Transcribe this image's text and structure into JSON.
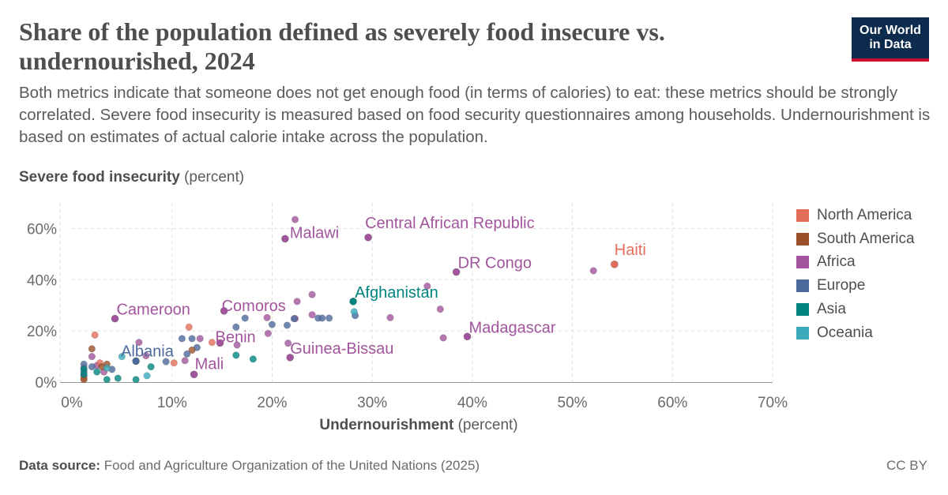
{
  "header": {
    "title": "Share of the population defined as severely food insecure vs. undernourished, 2024",
    "subtitle": "Both metrics indicate that someone does not get enough food (in terms of calories) to eat: these metrics should be strongly correlated. Severe food insecurity is measured based on food security questionnaires among households. Undernourishment is based on estimates of actual calorie intake across the population.",
    "logo_line1": "Our World",
    "logo_line2": "in Data"
  },
  "axes": {
    "y_label_bold": "Severe food insecurity",
    "y_label_unit": "(percent)",
    "x_label_bold": "Undernourishment",
    "x_label_unit": "(percent)"
  },
  "footer": {
    "source_label": "Data source:",
    "source_text": "Food and Agriculture Organization of the United Nations (2025)",
    "license": "CC BY"
  },
  "colors": {
    "North America": "#e56e5a",
    "South America": "#9a5129",
    "Africa": "#a2559c",
    "Europe": "#4c6a9c",
    "Asia": "#00847e",
    "Oceania": "#38aaba"
  },
  "chart_data": {
    "type": "scatter",
    "xlabel": "Undernourishment (percent)",
    "ylabel": "Severe food insecurity (percent)",
    "xlim": [
      0,
      70
    ],
    "ylim": [
      0,
      70
    ],
    "x_ticks": [
      0,
      10,
      20,
      30,
      40,
      50,
      60,
      70
    ],
    "y_ticks": [
      0,
      20,
      40,
      60
    ],
    "x_tick_labels": [
      "0%",
      "10%",
      "20%",
      "30%",
      "40%",
      "50%",
      "60%",
      "70%"
    ],
    "y_tick_labels": [
      "0%",
      "20%",
      "40%",
      "60%"
    ],
    "grid": true,
    "legend_position": "right",
    "legend": [
      "North America",
      "South America",
      "Africa",
      "Europe",
      "Asia",
      "Oceania"
    ],
    "labeled_points": [
      {
        "name": "Haiti",
        "region": "North America",
        "x": 54.2,
        "y": 46.0
      },
      {
        "name": "Malawi",
        "region": "Africa",
        "x": 21.3,
        "y": 56.0
      },
      {
        "name": "Central African Republic",
        "region": "Africa",
        "x": 29.6,
        "y": 56.5
      },
      {
        "name": "DR Congo",
        "region": "Africa",
        "x": 38.4,
        "y": 43.0
      },
      {
        "name": "Afghanistan",
        "region": "Asia",
        "x": 28.1,
        "y": 31.5
      },
      {
        "name": "Cameroon",
        "region": "Africa",
        "x": 4.3,
        "y": 24.8
      },
      {
        "name": "Comoros",
        "region": "Africa",
        "x": 15.2,
        "y": 27.8
      },
      {
        "name": "Madagascar",
        "region": "Africa",
        "x": 39.5,
        "y": 17.8
      },
      {
        "name": "Benin",
        "region": "Africa",
        "x": 14.8,
        "y": 15.3
      },
      {
        "name": "Guinea-Bissau",
        "region": "Africa",
        "x": 21.8,
        "y": 9.6
      },
      {
        "name": "Albania",
        "region": "Europe",
        "x": 6.4,
        "y": 8.2
      },
      {
        "name": "Mali",
        "region": "Africa",
        "x": 12.2,
        "y": 3.0
      }
    ],
    "points": [
      {
        "region": "Africa",
        "x": 22.3,
        "y": 63.5
      },
      {
        "region": "Africa",
        "x": 52.1,
        "y": 43.5
      },
      {
        "region": "Africa",
        "x": 35.5,
        "y": 37.5
      },
      {
        "region": "Africa",
        "x": 24.0,
        "y": 34.2
      },
      {
        "region": "Africa",
        "x": 22.5,
        "y": 31.5
      },
      {
        "region": "Africa",
        "x": 36.8,
        "y": 28.5
      },
      {
        "region": "Africa",
        "x": 31.8,
        "y": 25.2
      },
      {
        "region": "Africa",
        "x": 24.0,
        "y": 26.3
      },
      {
        "region": "Africa",
        "x": 22.3,
        "y": 24.8
      },
      {
        "region": "Africa",
        "x": 19.5,
        "y": 25.2
      },
      {
        "region": "Africa",
        "x": 19.6,
        "y": 19.0
      },
      {
        "region": "Africa",
        "x": 37.1,
        "y": 17.3
      },
      {
        "region": "Africa",
        "x": 21.6,
        "y": 15.2
      },
      {
        "region": "Africa",
        "x": 16.5,
        "y": 14.5
      },
      {
        "region": "Africa",
        "x": 12.8,
        "y": 17.0
      },
      {
        "region": "Africa",
        "x": 11.3,
        "y": 8.4
      },
      {
        "region": "Africa",
        "x": 2.0,
        "y": 10.0
      },
      {
        "region": "Africa",
        "x": 2.5,
        "y": 6.5
      },
      {
        "region": "Africa",
        "x": 6.7,
        "y": 15.5
      },
      {
        "region": "Africa",
        "x": 7.4,
        "y": 10.3
      },
      {
        "region": "Africa",
        "x": 3.2,
        "y": 4.0
      },
      {
        "region": "Europe",
        "x": 16.4,
        "y": 21.5
      },
      {
        "region": "Europe",
        "x": 17.3,
        "y": 25.0
      },
      {
        "region": "Europe",
        "x": 20.0,
        "y": 22.5
      },
      {
        "region": "Europe",
        "x": 21.5,
        "y": 22.2
      },
      {
        "region": "Europe",
        "x": 22.2,
        "y": 24.8
      },
      {
        "region": "Europe",
        "x": 24.6,
        "y": 25.0
      },
      {
        "region": "Europe",
        "x": 25.0,
        "y": 25.0
      },
      {
        "region": "Europe",
        "x": 25.7,
        "y": 25.0
      },
      {
        "region": "Europe",
        "x": 28.3,
        "y": 26.0
      },
      {
        "region": "Europe",
        "x": 11.0,
        "y": 17.0
      },
      {
        "region": "Europe",
        "x": 12.0,
        "y": 17.0
      },
      {
        "region": "Europe",
        "x": 12.5,
        "y": 13.5
      },
      {
        "region": "Europe",
        "x": 11.5,
        "y": 11.0
      },
      {
        "region": "Europe",
        "x": 9.4,
        "y": 8.0
      },
      {
        "region": "Europe",
        "x": 1.2,
        "y": 7.0
      },
      {
        "region": "Europe",
        "x": 1.2,
        "y": 5.5
      },
      {
        "region": "Europe",
        "x": 1.2,
        "y": 4.0
      },
      {
        "region": "Europe",
        "x": 1.2,
        "y": 2.5
      },
      {
        "region": "Europe",
        "x": 2.0,
        "y": 6.0
      },
      {
        "region": "Europe",
        "x": 4.0,
        "y": 5.0
      },
      {
        "region": "North America",
        "x": 11.7,
        "y": 21.5
      },
      {
        "region": "North America",
        "x": 2.3,
        "y": 18.4
      },
      {
        "region": "North America",
        "x": 14.0,
        "y": 15.5
      },
      {
        "region": "North America",
        "x": 10.2,
        "y": 7.5
      },
      {
        "region": "North America",
        "x": 2.8,
        "y": 7.5
      },
      {
        "region": "North America",
        "x": 1.2,
        "y": 1.5
      },
      {
        "region": "South America",
        "x": 12.0,
        "y": 12.5
      },
      {
        "region": "South America",
        "x": 2.0,
        "y": 13.0
      },
      {
        "region": "South America",
        "x": 3.5,
        "y": 7.0
      },
      {
        "region": "South America",
        "x": 3.0,
        "y": 6.0
      },
      {
        "region": "South America",
        "x": 1.2,
        "y": 1.0
      },
      {
        "region": "Asia",
        "x": 16.4,
        "y": 10.5
      },
      {
        "region": "Asia",
        "x": 18.1,
        "y": 9.0
      },
      {
        "region": "Asia",
        "x": 7.9,
        "y": 6.0
      },
      {
        "region": "Asia",
        "x": 3.5,
        "y": 1.0
      },
      {
        "region": "Asia",
        "x": 4.6,
        "y": 1.5
      },
      {
        "region": "Asia",
        "x": 6.4,
        "y": 1.0
      },
      {
        "region": "Asia",
        "x": 1.2,
        "y": 5.0
      },
      {
        "region": "Asia",
        "x": 1.2,
        "y": 3.0
      },
      {
        "region": "Asia",
        "x": 2.5,
        "y": 4.0
      },
      {
        "region": "Oceania",
        "x": 28.2,
        "y": 27.5
      },
      {
        "region": "Oceania",
        "x": 7.5,
        "y": 2.5
      },
      {
        "region": "Oceania",
        "x": 3.5,
        "y": 5.5
      },
      {
        "region": "Oceania",
        "x": 5.0,
        "y": 10.0
      }
    ]
  }
}
